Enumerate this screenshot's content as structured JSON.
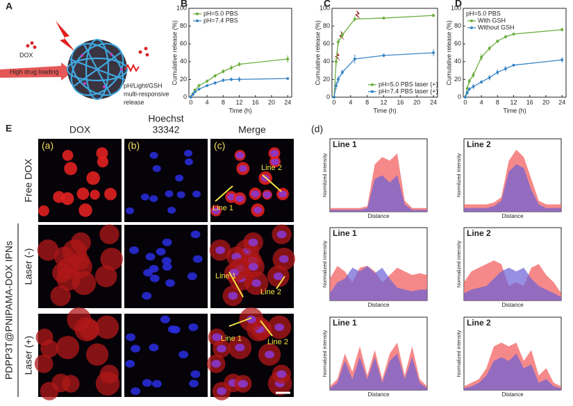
{
  "panel_a": {
    "label": "A",
    "dox": "DOX",
    "loading": "High drug loading",
    "release": [
      "pH/Light/GSH",
      "multi-responsive",
      "release"
    ]
  },
  "chart_data": [
    {
      "type": "line",
      "panel_label": "B",
      "xlabel": "Time (h)",
      "ylabel": "Cumulative release (%)",
      "x": [
        0,
        0.5,
        1,
        2,
        4,
        6,
        8,
        10,
        12,
        24
      ],
      "xlim": [
        -0.5,
        25
      ],
      "xticks": [
        0,
        4,
        8,
        12,
        16,
        20,
        24
      ],
      "ylim": [
        0,
        100
      ],
      "yticks": [
        0,
        20,
        40,
        60,
        80,
        100
      ],
      "legend": "upper left",
      "series": [
        {
          "name": "pH=5.0 PBS",
          "color": "#6cae3f",
          "values": [
            0,
            4,
            8,
            13,
            18,
            24,
            29,
            33,
            37,
            43
          ],
          "errors": [
            0,
            1,
            1.5,
            2,
            2,
            2,
            2.5,
            3,
            2.5,
            4
          ]
        },
        {
          "name": "pH=7.4 PBS",
          "color": "#3a86c6",
          "values": [
            0,
            3,
            6,
            9,
            13,
            16,
            19,
            20,
            20,
            21
          ],
          "errors": [
            0,
            1,
            1,
            1.5,
            1.5,
            2,
            2,
            2,
            3,
            1
          ]
        }
      ]
    },
    {
      "type": "line",
      "panel_label": "C",
      "xlabel": "Time (h)",
      "ylabel": "Cumulative release (%)",
      "x": [
        0,
        0.5,
        1,
        2,
        5,
        12,
        24
      ],
      "xlim": [
        -0.5,
        25
      ],
      "xticks": [
        0,
        4,
        8,
        12,
        16,
        20,
        24
      ],
      "ylim": [
        0,
        100
      ],
      "yticks": [
        0,
        20,
        40,
        60,
        80,
        100
      ],
      "legend": "lower right",
      "series": [
        {
          "name": "pH=5.0 PBS laser (+)",
          "color": "#6cae3f",
          "values": [
            0,
            40,
            62,
            70,
            88,
            89,
            92
          ],
          "errors": [
            0,
            5,
            4,
            3,
            3,
            1.5,
            2
          ]
        },
        {
          "name": "pH=7.4 PBS laser (+)",
          "color": "#3a86c6",
          "values": [
            0,
            13,
            20,
            28,
            43,
            47,
            50
          ],
          "errors": [
            0,
            4,
            4,
            3,
            5,
            2,
            4
          ]
        }
      ]
    },
    {
      "type": "line",
      "panel_label": "D",
      "legend_title": "pH=5.0 PBS",
      "xlabel": "Time (h)",
      "ylabel": "Cumulative release (%)",
      "x": [
        0,
        0.5,
        1,
        2,
        4,
        6,
        8,
        10,
        12,
        24
      ],
      "xlim": [
        -0.5,
        25
      ],
      "xticks": [
        0,
        4,
        8,
        12,
        16,
        20,
        24
      ],
      "ylim": [
        0,
        100
      ],
      "yticks": [
        0,
        20,
        40,
        60,
        80,
        100
      ],
      "legend": "upper left",
      "series": [
        {
          "name": "With GSH",
          "color": "#6cae3f",
          "values": [
            0,
            10,
            18,
            25,
            45,
            55,
            63,
            68,
            71,
            76
          ],
          "errors": [
            0,
            2,
            3,
            3,
            4,
            3,
            2,
            2,
            1.5,
            2
          ]
        },
        {
          "name": "Without GSH",
          "color": "#3a86c6",
          "values": [
            0,
            5,
            9,
            12,
            17,
            22,
            28,
            32,
            36,
            42
          ],
          "errors": [
            0,
            2,
            2,
            3,
            2,
            3,
            3,
            3,
            1,
            3
          ]
        }
      ]
    },
    {
      "type": "area",
      "title": "Line 1",
      "xlabel": "Distance",
      "ylabel": "Normlized intensity",
      "series": [
        {
          "color": "#f26b6b",
          "values": [
            0.1,
            0.1,
            0.1,
            0.1,
            0.1,
            0.15,
            1.3,
            1.5,
            1.4,
            1.6,
            0.3,
            0.1,
            0.1,
            0.1
          ]
        },
        {
          "color": "#6b5fd6",
          "values": [
            0.05,
            0.05,
            0.05,
            0.05,
            0.05,
            0.1,
            0.9,
            1.0,
            0.8,
            1.0,
            0.2,
            0.05,
            0.05,
            0.05
          ]
        }
      ]
    },
    {
      "type": "area",
      "title": "Line 2",
      "xlabel": "Distance",
      "ylabel": "Normlized intensity",
      "series": [
        {
          "color": "#f26b6b",
          "values": [
            0.2,
            0.2,
            0.2,
            0.2,
            0.25,
            0.4,
            1.4,
            1.7,
            1.5,
            0.9,
            0.3,
            0.2,
            0.2,
            0.2
          ]
        },
        {
          "color": "#6b5fd6",
          "values": [
            0.1,
            0.1,
            0.1,
            0.1,
            0.15,
            0.3,
            1.1,
            1.3,
            1.2,
            0.6,
            0.2,
            0.1,
            0.1,
            0.1
          ]
        }
      ]
    },
    {
      "type": "area",
      "title": "Line 1",
      "xlabel": "Distance",
      "ylabel": "Normalized intensity",
      "series": [
        {
          "color": "#f26b6b",
          "values": [
            0.6,
            0.95,
            0.8,
            0.5,
            0.9,
            0.95,
            0.8,
            0.5,
            0.7,
            0.9,
            0.8,
            0.7,
            0.75,
            0.7
          ]
        },
        {
          "color": "#6b5fd6",
          "values": [
            0.2,
            0.5,
            0.6,
            0.9,
            0.8,
            0.95,
            0.75,
            0.9,
            0.6,
            0.35,
            0.3,
            0.25,
            0.3,
            0.3
          ]
        }
      ]
    },
    {
      "type": "area",
      "title": "Line 2",
      "xlabel": "Distance",
      "ylabel": "Normalized intensity",
      "series": [
        {
          "color": "#f26b6b",
          "values": [
            0.5,
            0.8,
            0.9,
            1.0,
            1.1,
            1.0,
            0.4,
            0.5,
            0.4,
            0.9,
            1.0,
            0.7,
            0.5,
            0.2
          ]
        },
        {
          "color": "#6b5fd6",
          "values": [
            0.2,
            0.3,
            0.35,
            0.4,
            0.6,
            0.8,
            0.9,
            0.8,
            0.9,
            0.6,
            0.4,
            0.3,
            0.2,
            0.1
          ]
        }
      ]
    },
    {
      "type": "area",
      "title": "Line 1",
      "xlabel": "Distance",
      "ylabel": "Normalized intensity",
      "series": [
        {
          "color": "#f26b6b",
          "values": [
            0.1,
            0.3,
            1.0,
            0.5,
            1.2,
            0.4,
            1.1,
            0.3,
            1.0,
            1.3,
            0.4,
            1.2,
            0.3,
            0.1
          ]
        },
        {
          "color": "#6b5fd6",
          "values": [
            0.05,
            0.2,
            0.8,
            0.3,
            0.9,
            0.3,
            0.9,
            0.2,
            0.8,
            1.0,
            0.3,
            0.9,
            0.2,
            0.05
          ]
        }
      ]
    },
    {
      "type": "area",
      "title": "Line 2",
      "xlabel": "Distance",
      "ylabel": "Normalized intensity",
      "series": [
        {
          "color": "#f26b6b",
          "values": [
            0.1,
            0.2,
            0.3,
            0.6,
            1.2,
            1.3,
            1.2,
            1.3,
            0.8,
            1.1,
            0.4,
            0.6,
            0.2,
            0.1
          ]
        },
        {
          "color": "#6b5fd6",
          "values": [
            0.05,
            0.1,
            0.2,
            0.4,
            0.8,
            0.9,
            0.8,
            1.0,
            0.6,
            0.7,
            0.2,
            0.3,
            0.1,
            0.05
          ]
        }
      ]
    }
  ],
  "panel_e": {
    "label": "E",
    "columns": [
      {
        "title": [
          "DOX"
        ],
        "tag": "(a)"
      },
      {
        "title": [
          "Hoechst",
          "33342"
        ],
        "tag": "(b)"
      },
      {
        "title": [
          "Merge"
        ],
        "tag": "(c)"
      }
    ],
    "group": "PDPP3T@PNIPAMA-DOX IPNs",
    "rows": [
      {
        "label": "Free DOX",
        "lines": [
          "Line 1",
          "Line 2"
        ]
      },
      {
        "label": "Laser (-)",
        "lines": [
          "Line 1",
          "Line 2"
        ]
      },
      {
        "label": "Laser (+)",
        "lines": [
          "Line 1",
          "Line 2"
        ]
      }
    ]
  },
  "panel_d": {
    "label": "(d)"
  }
}
